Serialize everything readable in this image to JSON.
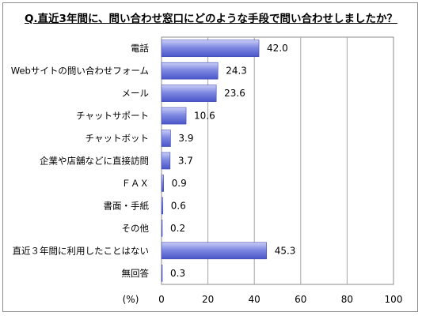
{
  "chart_data": {
    "type": "bar",
    "orientation": "horizontal",
    "title": "Q.直近3年間に、問い合わせ窓口にどのような手段で問い合わせしましたか？",
    "categories": [
      "電話",
      "Webサイトの問い合わせフォーム",
      "メール",
      "チャットサポート",
      "チャットボット",
      "企業や店舗などに直接訪問",
      "ＦＡＸ",
      "書面・手紙",
      "その他",
      "直近３年間に利用したことはない",
      "無回答"
    ],
    "values": [
      42.0,
      24.3,
      23.6,
      10.6,
      3.9,
      3.7,
      0.9,
      0.6,
      0.2,
      45.3,
      0.3
    ],
    "value_labels": [
      "42.0",
      "24.3",
      "23.6",
      "10.6",
      "3.9",
      "3.7",
      "0.9",
      "0.6",
      "0.2",
      "45.3",
      "0.3"
    ],
    "xlim": [
      0,
      100
    ],
    "x_ticks": [
      "0",
      "20",
      "40",
      "60",
      "80",
      "100"
    ],
    "xlabel": "(%)",
    "grid": true,
    "bar_color": "#5b67d6",
    "bar_highlight_color": "#c9cdf6"
  }
}
